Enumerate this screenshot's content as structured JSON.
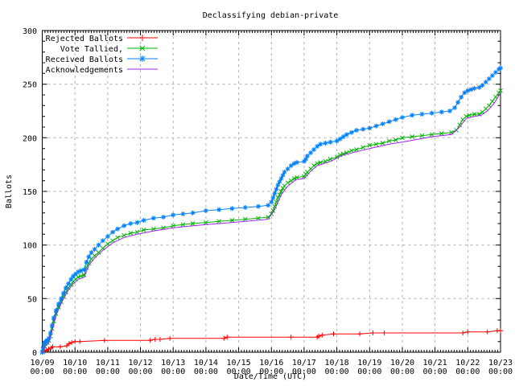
{
  "chart_data": {
    "type": "line",
    "title": "Declassifying debian-private",
    "xlabel": "Date/Time (UTC)",
    "ylabel": "Ballots",
    "x_tick_dates": [
      "10/09",
      "10/10",
      "10/11",
      "10/12",
      "10/13",
      "10/14",
      "10/15",
      "10/16",
      "10/17",
      "10/18",
      "10/19",
      "10/20",
      "10/21",
      "10/22",
      "10/23"
    ],
    "x_tick_time": "00:00",
    "x_range_days": [
      0,
      14
    ],
    "ylim": [
      0,
      300
    ],
    "y_ticks": [
      0,
      50,
      100,
      150,
      200,
      250,
      300
    ],
    "grid": true,
    "legend_position": "top-left",
    "grid_color": "#b0b0b0",
    "axis_color": "#000000",
    "background_color": "#ffffff",
    "series": [
      {
        "name": "Rejected Ballots",
        "color": "#ff0000",
        "marker": "plus",
        "points": [
          [
            0,
            0
          ],
          [
            0.08,
            1
          ],
          [
            0.13,
            2
          ],
          [
            0.2,
            3
          ],
          [
            0.27,
            4
          ],
          [
            0.32,
            5
          ],
          [
            0.55,
            5
          ],
          [
            0.75,
            6
          ],
          [
            0.82,
            8
          ],
          [
            0.9,
            9
          ],
          [
            1,
            10
          ],
          [
            1.15,
            10
          ],
          [
            1.9,
            11
          ],
          [
            3.3,
            11
          ],
          [
            3.45,
            12
          ],
          [
            3.6,
            12
          ],
          [
            3.9,
            13
          ],
          [
            5.55,
            13
          ],
          [
            5.65,
            14
          ],
          [
            7.6,
            14
          ],
          [
            8.4,
            14
          ],
          [
            8.45,
            15
          ],
          [
            8.55,
            16
          ],
          [
            8.9,
            17
          ],
          [
            9.7,
            17
          ],
          [
            10.1,
            18
          ],
          [
            10.45,
            18
          ],
          [
            12.85,
            18
          ],
          [
            13,
            19
          ],
          [
            13.6,
            19
          ],
          [
            13.9,
            20
          ],
          [
            14,
            20
          ]
        ]
      },
      {
        "name": "Vote Tallied,",
        "color": "#00b400",
        "marker": "cross",
        "points": [
          [
            0,
            0
          ],
          [
            0.03,
            3
          ],
          [
            0.06,
            6
          ],
          [
            0.1,
            8
          ],
          [
            0.15,
            9
          ],
          [
            0.2,
            11
          ],
          [
            0.25,
            15
          ],
          [
            0.3,
            22
          ],
          [
            0.35,
            29
          ],
          [
            0.42,
            36
          ],
          [
            0.5,
            42
          ],
          [
            0.58,
            47
          ],
          [
            0.65,
            52
          ],
          [
            0.72,
            56
          ],
          [
            0.8,
            60
          ],
          [
            0.88,
            63
          ],
          [
            0.95,
            66
          ],
          [
            1.02,
            68
          ],
          [
            1.1,
            70
          ],
          [
            1.18,
            71
          ],
          [
            1.28,
            72
          ],
          [
            1.35,
            79
          ],
          [
            1.42,
            83
          ],
          [
            1.5,
            87
          ],
          [
            1.6,
            90
          ],
          [
            1.72,
            93
          ],
          [
            1.85,
            97
          ],
          [
            2,
            101
          ],
          [
            2.15,
            104
          ],
          [
            2.3,
            107
          ],
          [
            2.5,
            109
          ],
          [
            2.7,
            111
          ],
          [
            2.9,
            112
          ],
          [
            3.1,
            114
          ],
          [
            3.4,
            115
          ],
          [
            3.7,
            116
          ],
          [
            4,
            118
          ],
          [
            4.3,
            119
          ],
          [
            4.6,
            120
          ],
          [
            5,
            121
          ],
          [
            5.4,
            122
          ],
          [
            5.8,
            123
          ],
          [
            6.2,
            124
          ],
          [
            6.6,
            125
          ],
          [
            6.9,
            126
          ],
          [
            7,
            129
          ],
          [
            7.05,
            132
          ],
          [
            7.1,
            136
          ],
          [
            7.15,
            140
          ],
          [
            7.2,
            144
          ],
          [
            7.25,
            147
          ],
          [
            7.3,
            150
          ],
          [
            7.35,
            153
          ],
          [
            7.4,
            155
          ],
          [
            7.5,
            158
          ],
          [
            7.6,
            160
          ],
          [
            7.7,
            162
          ],
          [
            7.78,
            163
          ],
          [
            8,
            164
          ],
          [
            8.05,
            166
          ],
          [
            8.1,
            168
          ],
          [
            8.2,
            171
          ],
          [
            8.3,
            174
          ],
          [
            8.4,
            176
          ],
          [
            8.5,
            177
          ],
          [
            8.65,
            178
          ],
          [
            8.8,
            180
          ],
          [
            9,
            182
          ],
          [
            9.1,
            184
          ],
          [
            9.2,
            185
          ],
          [
            9.3,
            186
          ],
          [
            9.45,
            188
          ],
          [
            9.6,
            189
          ],
          [
            9.8,
            191
          ],
          [
            10,
            193
          ],
          [
            10.2,
            194
          ],
          [
            10.4,
            195
          ],
          [
            10.6,
            197
          ],
          [
            10.8,
            198
          ],
          [
            11,
            200
          ],
          [
            11.3,
            201
          ],
          [
            11.6,
            202
          ],
          [
            11.9,
            203
          ],
          [
            12.2,
            204
          ],
          [
            12.5,
            205
          ],
          [
            12.65,
            207
          ],
          [
            12.75,
            212
          ],
          [
            12.85,
            217
          ],
          [
            12.95,
            220
          ],
          [
            13.05,
            221
          ],
          [
            13.2,
            222
          ],
          [
            13.35,
            222
          ],
          [
            13.45,
            224
          ],
          [
            13.55,
            227
          ],
          [
            13.65,
            230
          ],
          [
            13.75,
            234
          ],
          [
            13.85,
            238
          ],
          [
            13.95,
            242
          ],
          [
            14,
            244
          ]
        ]
      },
      {
        "name": "Received Ballots",
        "color": "#0080ff",
        "marker": "asterisk",
        "points": [
          [
            0,
            0
          ],
          [
            0.03,
            4
          ],
          [
            0.06,
            8
          ],
          [
            0.1,
            10
          ],
          [
            0.15,
            11
          ],
          [
            0.2,
            13
          ],
          [
            0.25,
            18
          ],
          [
            0.3,
            25
          ],
          [
            0.35,
            32
          ],
          [
            0.42,
            39
          ],
          [
            0.5,
            45
          ],
          [
            0.58,
            50
          ],
          [
            0.65,
            55
          ],
          [
            0.72,
            60
          ],
          [
            0.8,
            64
          ],
          [
            0.88,
            68
          ],
          [
            0.95,
            71
          ],
          [
            1.02,
            73
          ],
          [
            1.1,
            75
          ],
          [
            1.18,
            76
          ],
          [
            1.28,
            77
          ],
          [
            1.35,
            84
          ],
          [
            1.42,
            89
          ],
          [
            1.5,
            93
          ],
          [
            1.6,
            96
          ],
          [
            1.72,
            100
          ],
          [
            1.85,
            104
          ],
          [
            2,
            108
          ],
          [
            2.15,
            112
          ],
          [
            2.3,
            115
          ],
          [
            2.5,
            118
          ],
          [
            2.7,
            120
          ],
          [
            2.9,
            121
          ],
          [
            3.1,
            123
          ],
          [
            3.4,
            125
          ],
          [
            3.7,
            126
          ],
          [
            4,
            128
          ],
          [
            4.3,
            129
          ],
          [
            4.6,
            130
          ],
          [
            5,
            132
          ],
          [
            5.4,
            133
          ],
          [
            5.8,
            134
          ],
          [
            6.2,
            135
          ],
          [
            6.6,
            136
          ],
          [
            6.9,
            137
          ],
          [
            7,
            140
          ],
          [
            7.05,
            144
          ],
          [
            7.1,
            148
          ],
          [
            7.15,
            152
          ],
          [
            7.2,
            156
          ],
          [
            7.25,
            159
          ],
          [
            7.3,
            162
          ],
          [
            7.35,
            165
          ],
          [
            7.4,
            168
          ],
          [
            7.5,
            171
          ],
          [
            7.6,
            174
          ],
          [
            7.7,
            176
          ],
          [
            7.78,
            177
          ],
          [
            8,
            178
          ],
          [
            8.05,
            180
          ],
          [
            8.1,
            183
          ],
          [
            8.2,
            186
          ],
          [
            8.3,
            189
          ],
          [
            8.4,
            192
          ],
          [
            8.5,
            194
          ],
          [
            8.65,
            195
          ],
          [
            8.8,
            196
          ],
          [
            9,
            197
          ],
          [
            9.1,
            199
          ],
          [
            9.2,
            201
          ],
          [
            9.3,
            203
          ],
          [
            9.45,
            205
          ],
          [
            9.6,
            207
          ],
          [
            9.8,
            208
          ],
          [
            10,
            209
          ],
          [
            10.2,
            211
          ],
          [
            10.4,
            213
          ],
          [
            10.6,
            215
          ],
          [
            10.8,
            217
          ],
          [
            11,
            219
          ],
          [
            11.3,
            221
          ],
          [
            11.6,
            222
          ],
          [
            11.9,
            223
          ],
          [
            12.2,
            224
          ],
          [
            12.45,
            225
          ],
          [
            12.6,
            228
          ],
          [
            12.7,
            233
          ],
          [
            12.8,
            238
          ],
          [
            12.9,
            242
          ],
          [
            13,
            244
          ],
          [
            13.1,
            245
          ],
          [
            13.2,
            246
          ],
          [
            13.35,
            247
          ],
          [
            13.45,
            249
          ],
          [
            13.55,
            252
          ],
          [
            13.65,
            255
          ],
          [
            13.75,
            258
          ],
          [
            13.85,
            261
          ],
          [
            13.95,
            264
          ],
          [
            14,
            265
          ]
        ]
      },
      {
        "name": "Acknowledgements",
        "color": "#a020f0",
        "marker": "none",
        "points": [
          [
            0,
            0
          ],
          [
            0.06,
            4
          ],
          [
            0.1,
            6
          ],
          [
            0.2,
            9
          ],
          [
            0.3,
            20
          ],
          [
            0.42,
            34
          ],
          [
            0.5,
            40
          ],
          [
            0.65,
            50
          ],
          [
            0.8,
            58
          ],
          [
            0.95,
            64
          ],
          [
            1.1,
            68
          ],
          [
            1.28,
            70
          ],
          [
            1.42,
            81
          ],
          [
            1.6,
            88
          ],
          [
            1.85,
            95
          ],
          [
            2.15,
            102
          ],
          [
            2.5,
            107
          ],
          [
            2.9,
            110
          ],
          [
            3.4,
            113
          ],
          [
            4,
            116
          ],
          [
            4.6,
            118
          ],
          [
            5.4,
            120
          ],
          [
            6.2,
            122
          ],
          [
            6.9,
            124
          ],
          [
            7.1,
            133
          ],
          [
            7.3,
            147
          ],
          [
            7.5,
            155
          ],
          [
            7.75,
            161
          ],
          [
            8,
            162
          ],
          [
            8.2,
            169
          ],
          [
            8.4,
            174
          ],
          [
            8.8,
            178
          ],
          [
            9.2,
            184
          ],
          [
            9.6,
            187
          ],
          [
            10,
            190
          ],
          [
            10.6,
            194
          ],
          [
            11.2,
            197
          ],
          [
            11.9,
            201
          ],
          [
            12.5,
            203
          ],
          [
            12.75,
            210
          ],
          [
            12.95,
            218
          ],
          [
            13.2,
            220
          ],
          [
            13.4,
            221
          ],
          [
            13.6,
            225
          ],
          [
            13.8,
            232
          ],
          [
            14,
            242
          ]
        ]
      }
    ]
  }
}
